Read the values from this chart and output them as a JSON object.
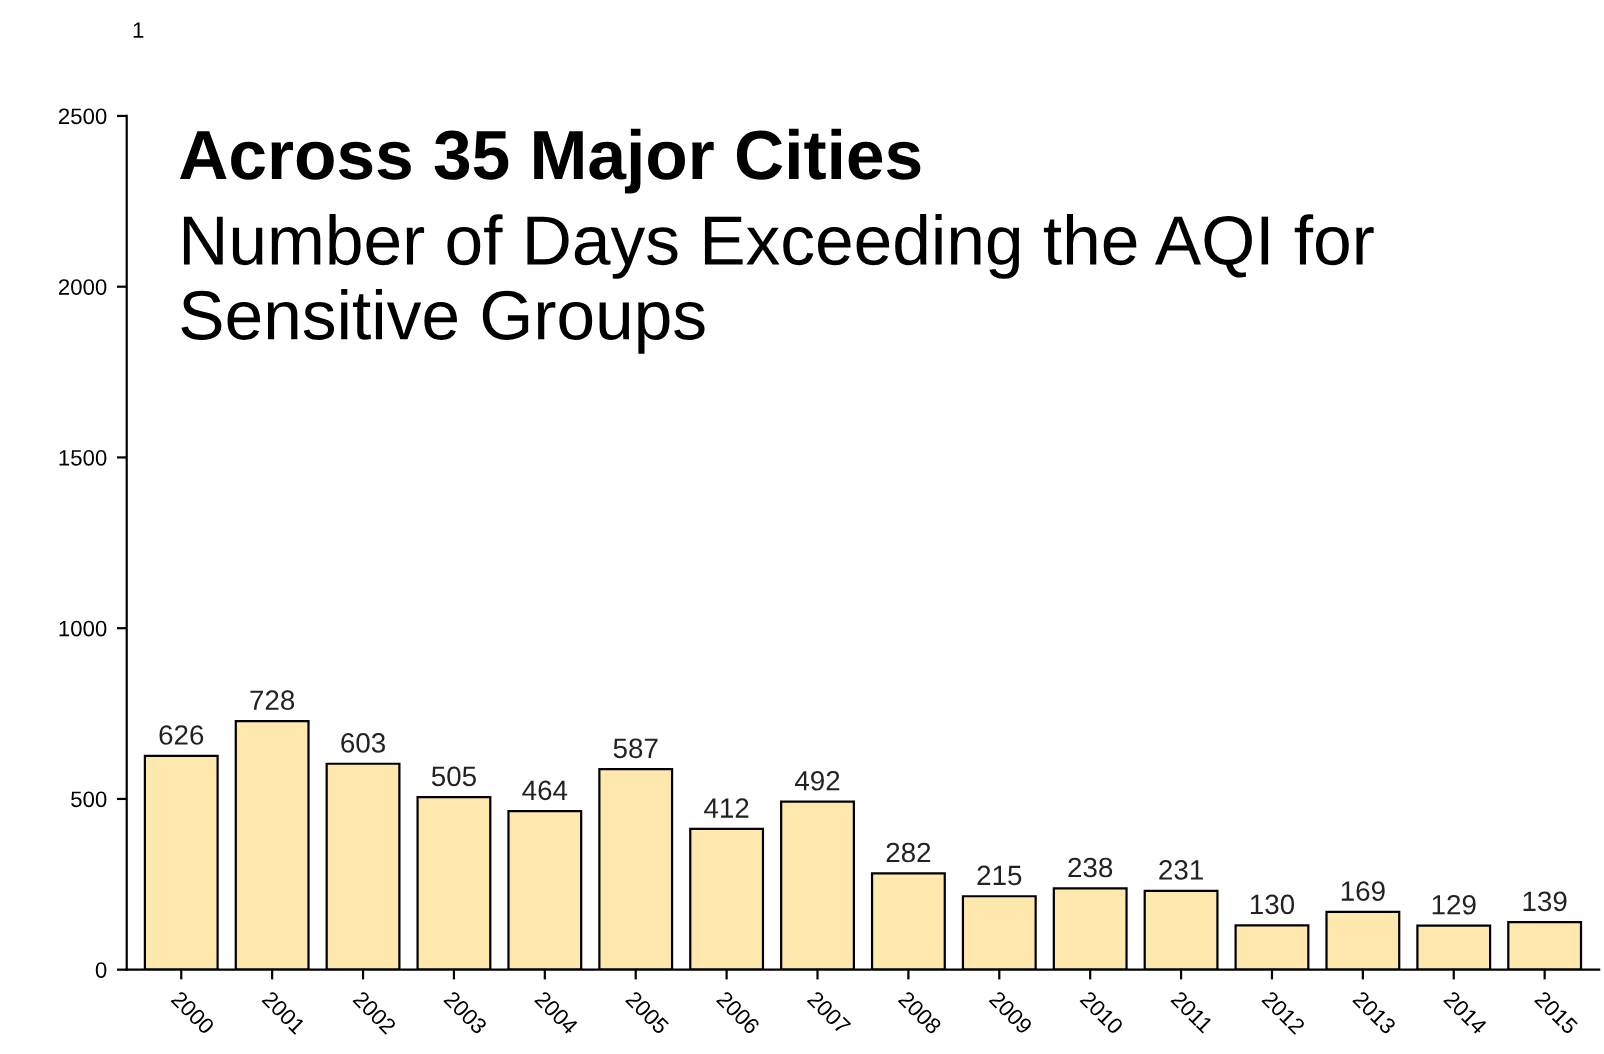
{
  "chart_data": {
    "type": "bar",
    "title": "Across 35 Major Cities",
    "subtitle": "Number of Days Exceeding the AQI for Sensitive Groups",
    "categories": [
      "2000",
      "2001",
      "2002",
      "2003",
      "2004",
      "2005",
      "2006",
      "2007",
      "2008",
      "2009",
      "2010",
      "2011",
      "2012",
      "2013",
      "2014",
      "2015"
    ],
    "values": [
      626,
      728,
      603,
      505,
      464,
      587,
      412,
      492,
      282,
      215,
      238,
      231,
      130,
      169,
      129,
      139
    ],
    "color": "#ffe8ad",
    "ylim": [
      0,
      2500
    ],
    "yticks": [
      0,
      500,
      1000,
      1500,
      2000,
      2500
    ],
    "data_labels": true,
    "grid": false,
    "annotations": [
      "1"
    ]
  }
}
